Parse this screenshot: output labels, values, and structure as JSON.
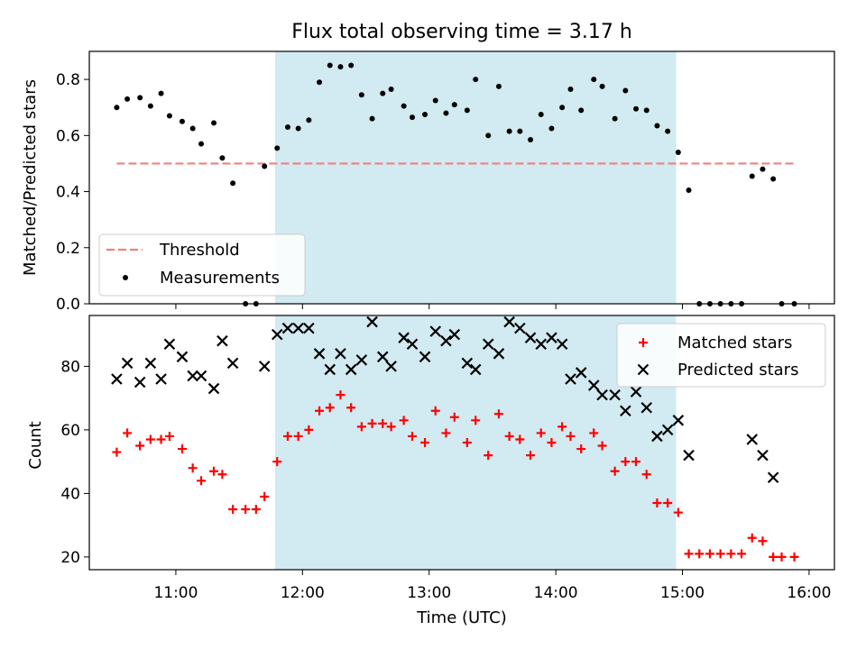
{
  "chart_data": {
    "type": "scatter",
    "title": "Flux total observing time = 3.17 h",
    "xlabel": "Time (UTC)",
    "xlim": [
      "10:19",
      "16:12"
    ],
    "x_ticks": [
      "11:00",
      "12:00",
      "13:00",
      "14:00",
      "15:00",
      "16:00"
    ],
    "highlight_span": {
      "start": "11:47",
      "end": "14:57",
      "color": "#add8e6"
    },
    "top": {
      "ylabel": "Matched/Predicted stars",
      "ylim": [
        0,
        0.9
      ],
      "y_ticks": [
        "0.0",
        "0.2",
        "0.4",
        "0.6",
        "0.8"
      ],
      "legend": {
        "position": "lower left",
        "entries": [
          "Threshold",
          "Measurements"
        ]
      },
      "threshold": {
        "name": "Threshold",
        "value": 0.5,
        "x_start": "10:32",
        "x_end": "15:53",
        "color": "#f08080"
      },
      "measurements": {
        "name": "Measurements",
        "color": "#000000",
        "x": [
          "10:32",
          "10:37",
          "10:43",
          "10:48",
          "10:53",
          "10:57",
          "11:03",
          "11:08",
          "11:12",
          "11:18",
          "11:22",
          "11:27",
          "11:33",
          "11:38",
          "11:42",
          "11:48",
          "11:53",
          "11:58",
          "12:03",
          "12:08",
          "12:13",
          "12:18",
          "12:23",
          "12:28",
          "12:33",
          "12:38",
          "12:42",
          "12:48",
          "12:52",
          "12:58",
          "13:03",
          "13:08",
          "13:12",
          "13:18",
          "13:22",
          "13:28",
          "13:33",
          "13:38",
          "13:43",
          "13:48",
          "13:53",
          "13:58",
          "14:03",
          "14:07",
          "14:12",
          "14:18",
          "14:22",
          "14:28",
          "14:33",
          "14:38",
          "14:43",
          "14:48",
          "14:53",
          "14:58",
          "15:03",
          "15:08",
          "15:13",
          "15:18",
          "15:23",
          "15:28",
          "15:33",
          "15:38",
          "15:43",
          "15:47",
          "15:53"
        ],
        "y": [
          0.7,
          0.73,
          0.735,
          0.705,
          0.75,
          0.67,
          0.65,
          0.625,
          0.57,
          0.645,
          0.52,
          0.43,
          0.0,
          0.0,
          0.49,
          0.555,
          0.63,
          0.625,
          0.655,
          0.79,
          0.85,
          0.845,
          0.85,
          0.745,
          0.66,
          0.75,
          0.765,
          0.705,
          0.665,
          0.675,
          0.725,
          0.68,
          0.71,
          0.69,
          0.8,
          0.6,
          0.775,
          0.615,
          0.615,
          0.585,
          0.675,
          0.625,
          0.7,
          0.765,
          0.69,
          0.8,
          0.775,
          0.66,
          0.76,
          0.695,
          0.69,
          0.635,
          0.615,
          0.54,
          0.405,
          0.0,
          0.0,
          0.0,
          0.0,
          0.0,
          0.455,
          0.48,
          0.445,
          0.0,
          0.0
        ]
      }
    },
    "bottom": {
      "ylabel": "Count",
      "ylim": [
        16,
        96
      ],
      "y_ticks": [
        "20",
        "40",
        "60",
        "80"
      ],
      "legend": {
        "position": "upper right",
        "entries": [
          "Matched stars",
          "Predicted stars"
        ]
      },
      "matched": {
        "name": "Matched stars",
        "color": "#ff0000",
        "x": [
          "10:32",
          "10:37",
          "10:43",
          "10:48",
          "10:53",
          "10:57",
          "11:03",
          "11:08",
          "11:12",
          "11:18",
          "11:22",
          "11:27",
          "11:33",
          "11:38",
          "11:42",
          "11:48",
          "11:53",
          "11:58",
          "12:03",
          "12:08",
          "12:13",
          "12:18",
          "12:23",
          "12:28",
          "12:33",
          "12:38",
          "12:42",
          "12:48",
          "12:52",
          "12:58",
          "13:03",
          "13:08",
          "13:12",
          "13:18",
          "13:22",
          "13:28",
          "13:33",
          "13:38",
          "13:43",
          "13:48",
          "13:53",
          "13:58",
          "14:03",
          "14:07",
          "14:12",
          "14:18",
          "14:22",
          "14:28",
          "14:33",
          "14:38",
          "14:43",
          "14:48",
          "14:53",
          "14:58",
          "15:03",
          "15:08",
          "15:13",
          "15:18",
          "15:23",
          "15:28",
          "15:33",
          "15:38",
          "15:43",
          "15:47",
          "15:53"
        ],
        "y": [
          53,
          59,
          55,
          57,
          57,
          58,
          54,
          48,
          44,
          47,
          46,
          35,
          35,
          35,
          39,
          50,
          58,
          58,
          60,
          66,
          67,
          71,
          67,
          61,
          62,
          62,
          61,
          63,
          58,
          56,
          66,
          59,
          64,
          56,
          63,
          52,
          65,
          58,
          57,
          52,
          59,
          56,
          61,
          58,
          54,
          59,
          55,
          47,
          50,
          50,
          46,
          37,
          37,
          34,
          21,
          21,
          21,
          21,
          21,
          21,
          26,
          25,
          20,
          20,
          20
        ]
      },
      "predicted": {
        "name": "Predicted stars",
        "color": "#000000",
        "x": [
          "10:32",
          "10:37",
          "10:43",
          "10:48",
          "10:53",
          "10:57",
          "11:03",
          "11:08",
          "11:12",
          "11:18",
          "11:22",
          "11:27",
          "11:42",
          "11:48",
          "11:53",
          "11:58",
          "12:03",
          "12:08",
          "12:13",
          "12:18",
          "12:23",
          "12:28",
          "12:33",
          "12:38",
          "12:42",
          "12:48",
          "12:52",
          "12:58",
          "13:03",
          "13:08",
          "13:12",
          "13:18",
          "13:22",
          "13:28",
          "13:33",
          "13:38",
          "13:43",
          "13:48",
          "13:53",
          "13:58",
          "14:03",
          "14:07",
          "14:12",
          "14:18",
          "14:22",
          "14:28",
          "14:33",
          "14:38",
          "14:43",
          "14:48",
          "14:53",
          "14:58",
          "15:03",
          "15:33",
          "15:38",
          "15:43"
        ],
        "y": [
          76,
          81,
          75,
          81,
          76,
          87,
          83,
          77,
          77,
          73,
          88,
          81,
          80,
          90,
          92,
          92,
          92,
          84,
          79,
          84,
          79,
          82,
          94,
          83,
          80,
          89,
          87,
          83,
          91,
          88,
          90,
          81,
          79,
          87,
          84,
          94,
          92,
          89,
          87,
          89,
          87,
          76,
          78,
          74,
          71,
          71,
          66,
          72,
          67,
          58,
          60,
          63,
          52,
          57,
          52,
          45
        ]
      }
    }
  }
}
